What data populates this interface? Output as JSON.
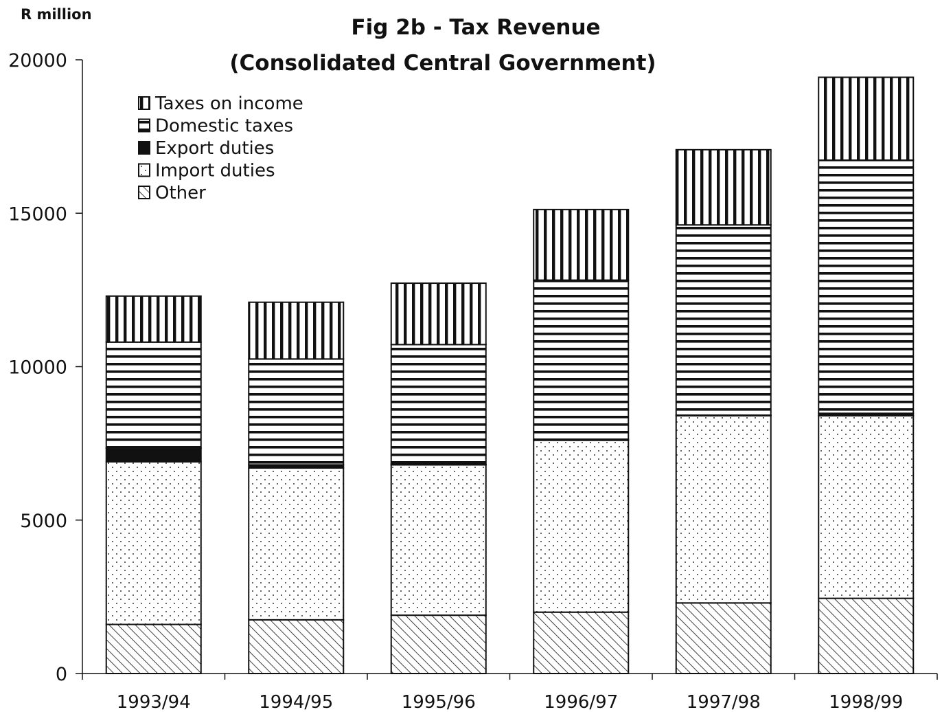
{
  "chart_data": {
    "type": "bar",
    "stacked": true,
    "title": "Fig 2b - Tax Revenue",
    "subtitle": "(Consolidated Central Government)",
    "ylabel": "R million",
    "xlabel": "",
    "ylim": [
      0,
      20000
    ],
    "yticks": [
      "0",
      "5000",
      "10000",
      "15000",
      "20000"
    ],
    "categories": [
      "1993/94",
      "1994/95",
      "1995/96",
      "1996/97",
      "1997/98",
      "1998/99"
    ],
    "grid": false,
    "legend_position": "top-left",
    "series": [
      {
        "name": "Other",
        "pattern": "diagonal-hatch",
        "values": [
          1600,
          1750,
          1900,
          2000,
          2300,
          2450
        ]
      },
      {
        "name": "Import duties",
        "pattern": "dotted",
        "values": [
          5300,
          4950,
          4900,
          5600,
          6100,
          5950
        ]
      },
      {
        "name": "Export duties",
        "pattern": "solid-black",
        "values": [
          450,
          100,
          20,
          20,
          20,
          80
        ]
      },
      {
        "name": "Domestic taxes",
        "pattern": "horizontal-stripes",
        "values": [
          3450,
          3450,
          3900,
          5200,
          6200,
          8250
        ]
      },
      {
        "name": "Taxes on income",
        "pattern": "vertical-stripes",
        "values": [
          1500,
          1850,
          2000,
          2300,
          2450,
          2700
        ]
      }
    ],
    "legend_order": [
      "Taxes on income",
      "Domestic taxes",
      "Export duties",
      "Import duties",
      "Other"
    ]
  }
}
